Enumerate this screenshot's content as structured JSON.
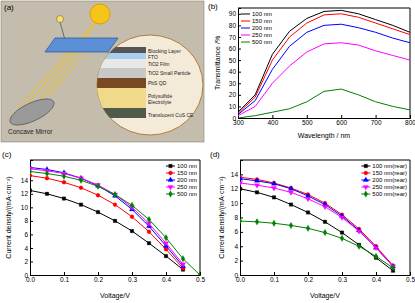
{
  "diagram": {
    "label": "(a)",
    "labels": [
      "Blocking Layer",
      "FTO",
      "TiO2 Film",
      "TiO2 Small Particle",
      "PbS QD",
      "Polysulfide",
      "Electrolyte",
      "Translucent CuS CE"
    ],
    "mirror_label": "Concave Mirror"
  },
  "chart_data": [
    {
      "type": "line",
      "title": "(b)",
      "xlabel": "Wavelength / nm",
      "ylabel": "Transmittance /%",
      "x": [
        300,
        350,
        400,
        450,
        500,
        550,
        600,
        650,
        700,
        750,
        800
      ],
      "xlim": [
        300,
        800
      ],
      "ylim": [
        0,
        95
      ],
      "xticks": [
        300,
        400,
        500,
        600,
        700,
        800
      ],
      "yticks": [
        0,
        10,
        20,
        30,
        40,
        50,
        60,
        70,
        80,
        90
      ],
      "legend": "upper left",
      "series": [
        {
          "name": "100 nm",
          "color": "#000000",
          "values": [
            5,
            20,
            55,
            75,
            86,
            92,
            93,
            90,
            85,
            80,
            74
          ]
        },
        {
          "name": "150 nm",
          "color": "#ff0000",
          "values": [
            4,
            18,
            50,
            70,
            82,
            89,
            90,
            87,
            82,
            77,
            72
          ]
        },
        {
          "name": "200 nm",
          "color": "#0000ff",
          "values": [
            3,
            15,
            42,
            62,
            74,
            80,
            81,
            78,
            74,
            69,
            65
          ]
        },
        {
          "name": "250 nm",
          "color": "#ff00ff",
          "values": [
            2,
            10,
            30,
            45,
            57,
            64,
            65,
            63,
            58,
            54,
            50
          ]
        },
        {
          "name": "500 nm",
          "color": "#008000",
          "values": [
            0,
            2,
            5,
            8,
            14,
            23,
            25,
            20,
            14,
            10,
            7
          ]
        }
      ]
    },
    {
      "type": "line",
      "title": "(c)",
      "xlabel": "Voltage/V",
      "ylabel": "Current density/(mA·cm⁻²)",
      "x": [
        0,
        0.05,
        0.1,
        0.15,
        0.2,
        0.25,
        0.3,
        0.35,
        0.4,
        0.45,
        0.5
      ],
      "xlim": [
        0,
        0.5
      ],
      "ylim": [
        0,
        17
      ],
      "xticks": [
        {
          "value": 0,
          "label": "0.0"
        },
        0.1,
        0.2,
        0.3,
        0.4,
        0.5
      ],
      "yticks": [
        0,
        2,
        4,
        6,
        8,
        10,
        12,
        14
      ],
      "legend": "upper right",
      "series": [
        {
          "name": "100 nm",
          "color": "#000000",
          "marker": "square",
          "values": [
            12.5,
            12.0,
            11.3,
            10.4,
            9.3,
            8.0,
            6.5,
            4.7,
            2.8,
            0.8,
            null
          ]
        },
        {
          "name": "150 nm",
          "color": "#ff0000",
          "marker": "circle",
          "values": [
            14.7,
            14.3,
            13.7,
            12.9,
            11.8,
            10.4,
            8.6,
            6.4,
            3.8,
            1.0,
            null
          ]
        },
        {
          "name": "200 nm",
          "color": "#0000ff",
          "marker": "triangle",
          "values": [
            15.9,
            15.6,
            15.1,
            14.3,
            13.2,
            11.7,
            9.7,
            7.2,
            4.3,
            1.3,
            null
          ]
        },
        {
          "name": "250 nm",
          "color": "#ff00ff",
          "marker": "triangle-down",
          "values": [
            15.7,
            15.4,
            15.0,
            14.3,
            13.3,
            11.9,
            10.0,
            7.6,
            4.7,
            1.6,
            null
          ]
        },
        {
          "name": "500 nm",
          "color": "#008000",
          "marker": "diamond",
          "values": [
            15.3,
            15.0,
            14.6,
            14.0,
            13.1,
            11.9,
            10.3,
            8.2,
            5.5,
            2.4,
            0
          ]
        }
      ]
    },
    {
      "type": "line",
      "title": "(d)",
      "xlabel": "Voltage/V",
      "ylabel": "Current density/(mA·cm⁻²)",
      "x": [
        0,
        0.05,
        0.1,
        0.15,
        0.2,
        0.25,
        0.3,
        0.35,
        0.4,
        0.45,
        0.5
      ],
      "xlim": [
        0,
        0.5
      ],
      "ylim": [
        0,
        16
      ],
      "xticks": [
        {
          "value": 0,
          "label": "0.0"
        },
        0.1,
        0.2,
        0.3,
        0.4,
        0.5
      ],
      "yticks": [
        0,
        2,
        4,
        6,
        8,
        10,
        12,
        14
      ],
      "legend": "upper right",
      "series": [
        {
          "name": "100 nm(rear)",
          "color": "#000000",
          "marker": "square",
          "values": [
            12.0,
            11.5,
            10.8,
            9.8,
            8.7,
            7.4,
            5.9,
            4.2,
            2.4,
            0.6,
            null
          ]
        },
        {
          "name": "150 nm(rear)",
          "color": "#ff0000",
          "marker": "circle",
          "values": [
            13.6,
            13.3,
            12.8,
            12.1,
            11.2,
            10.0,
            8.4,
            6.4,
            4.0,
            1.3,
            null
          ]
        },
        {
          "name": "200 nm(rear)",
          "color": "#0000ff",
          "marker": "triangle",
          "values": [
            13.4,
            13.1,
            12.7,
            12.0,
            11.0,
            9.8,
            8.2,
            6.2,
            3.8,
            1.2,
            null
          ]
        },
        {
          "name": "250 nm(rear)",
          "color": "#ff00ff",
          "marker": "triangle-down",
          "values": [
            12.8,
            12.5,
            12.1,
            11.5,
            10.6,
            9.5,
            8.0,
            6.1,
            3.8,
            1.2,
            null
          ]
        },
        {
          "name": "500 nm(rear)",
          "color": "#008000",
          "marker": "diamond",
          "values": [
            7.5,
            7.4,
            7.2,
            6.9,
            6.5,
            5.9,
            5.1,
            4.0,
            2.6,
            1.0,
            null
          ]
        }
      ]
    }
  ]
}
